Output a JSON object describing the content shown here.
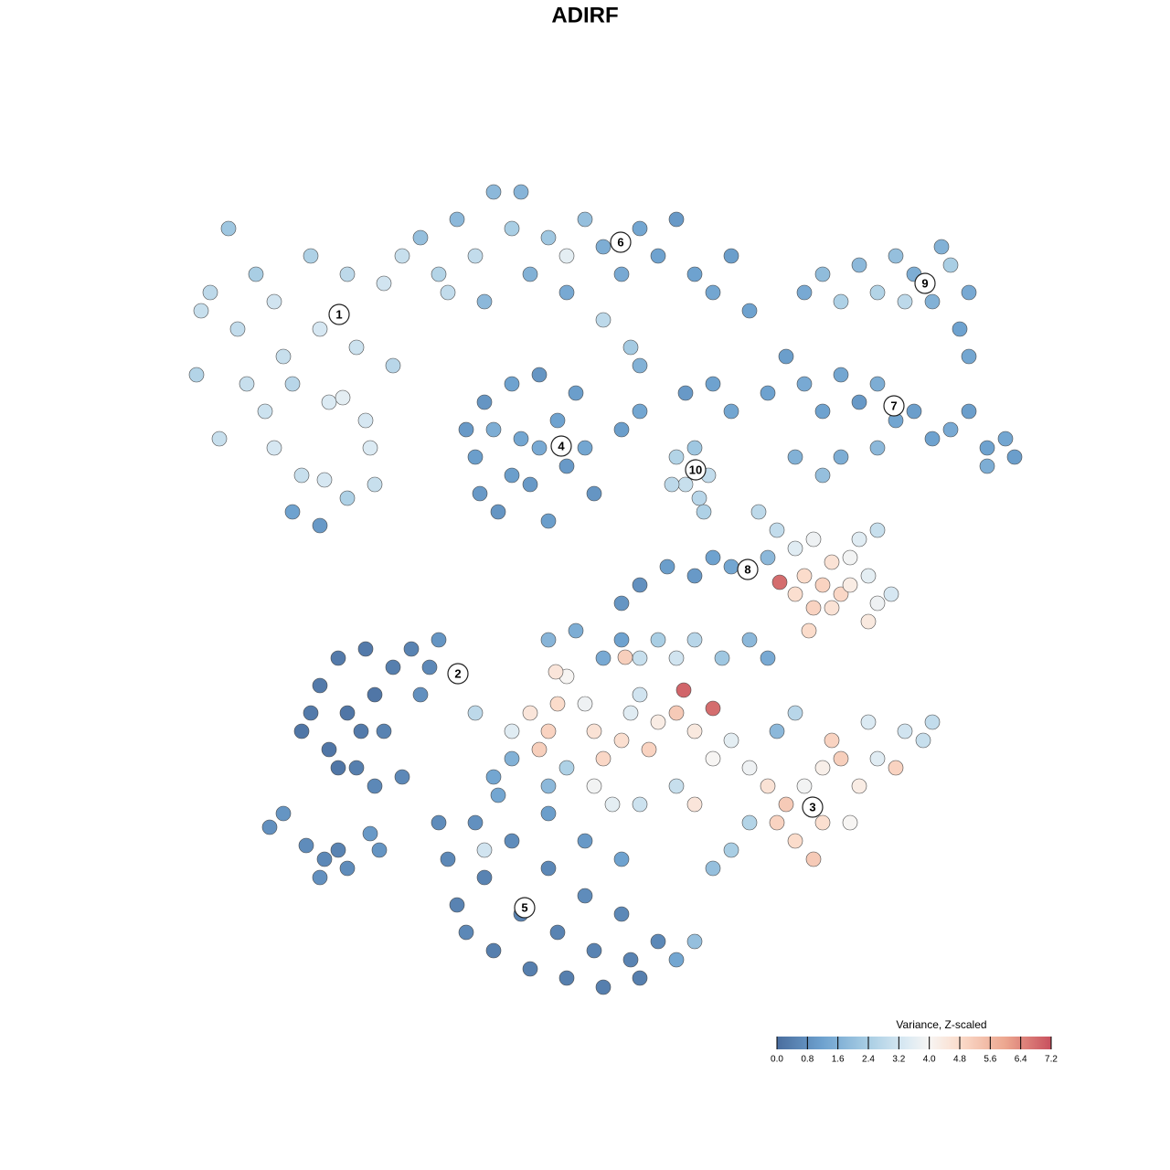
{
  "chart_data": {
    "type": "scatter",
    "title": "ADIRF",
    "xlim": [
      0,
      1280
    ],
    "ylim": [
      1280,
      0
    ],
    "x": [
      220,
      230,
      215,
      240,
      260,
      280,
      300,
      310,
      290,
      300,
      320,
      340,
      350,
      360,
      330,
      355,
      380,
      390,
      375,
      400,
      410,
      420,
      430,
      440,
      320,
      350,
      380,
      405,
      250,
      270,
      460,
      480,
      500,
      520,
      540,
      560,
      580,
      600,
      620,
      640,
      660,
      680,
      700,
      720,
      740,
      760,
      780,
      800,
      820,
      660,
      690,
      700,
      620,
      570,
      490,
      530,
      510,
      520,
      530,
      545,
      560,
      570,
      580,
      590,
      600,
      610,
      620,
      630,
      640,
      650,
      560,
      590,
      525,
      540,
      880,
      900,
      920,
      940,
      960,
      980,
      1000,
      1020,
      1040,
      1060,
      1050,
      1060,
      1030,
      990,
      840,
      860,
      880,
      900,
      920,
      940,
      960,
      980,
      1000,
      1020,
      1040,
      1060,
      1080,
      1100,
      1110,
      1080,
      870,
      900,
      920,
      960,
      780,
      800,
      750,
      700,
      680,
      740,
      750,
      765,
      775,
      760,
      735,
      770,
      830,
      850,
      840,
      870,
      890,
      910,
      920,
      900,
      880,
      870,
      890,
      910,
      930,
      950,
      960,
      975,
      950,
      930,
      940,
      960,
      885,
      853,
      800,
      780,
      760,
      730,
      700,
      680,
      330,
      350,
      360,
      370,
      380,
      390,
      400,
      410,
      420,
      430,
      440,
      450,
      460,
      480,
      500,
      410,
      340,
      370,
      395,
      470,
      295,
      310,
      335,
      355,
      370,
      380,
      350,
      405,
      415,
      520,
      560,
      580,
      600,
      610,
      590,
      620,
      640,
      650,
      660,
      680,
      690,
      700,
      710,
      720,
      740,
      748,
      780,
      760,
      780,
      800,
      820,
      840,
      860,
      850,
      870,
      880,
      900,
      910,
      920,
      940,
      960,
      980,
      990,
      1010,
      1020,
      950,
      900,
      890,
      930,
      820,
      800,
      780,
      760,
      740,
      700,
      670,
      650,
      620,
      600,
      740,
      720,
      700,
      760,
      790,
      820,
      840,
      600,
      630,
      660,
      680,
      684,
      608,
      560,
      540,
      850,
      870,
      480,
      490,
      500,
      510,
      520,
      530,
      540,
      560,
      570,
      580,
      600,
      610,
      620,
      640,
      650,
      660,
      680,
      690,
      700,
      720,
      740,
      760,
      640,
      680,
      530,
      545,
      600
    ],
    "y": [
      340,
      320,
      410,
      480,
      360,
      300,
      330,
      390,
      450,
      490,
      420,
      280,
      360,
      440,
      520,
      525,
      300,
      380,
      435,
      460,
      530,
      310,
      400,
      280,
      560,
      575,
      545,
      490,
      250,
      420,
      260,
      300,
      240,
      280,
      210,
      250,
      300,
      260,
      280,
      240,
      270,
      300,
      250,
      280,
      240,
      300,
      320,
      280,
      340,
      350,
      380,
      400,
      320,
      210,
      320,
      330,
      470,
      500,
      440,
      560,
      420,
      480,
      530,
      410,
      570,
      460,
      510,
      430,
      490,
      540,
      520,
      490,
      540,
      470,
      320,
      300,
      330,
      290,
      320,
      280,
      300,
      330,
      290,
      320,
      360,
      390,
      270,
      330,
      430,
      390,
      420,
      450,
      410,
      440,
      420,
      460,
      450,
      480,
      470,
      450,
      490,
      480,
      500,
      510,
      500,
      520,
      500,
      490,
      420,
      450,
      430,
      450,
      470,
      500,
      530,
      545,
      520,
      490,
      530,
      560,
      560,
      580,
      610,
      600,
      590,
      615,
      650,
      640,
      630,
      650,
      665,
      665,
      640,
      630,
      660,
      650,
      680,
      610,
      590,
      580,
      690,
      637,
      620,
      610,
      630,
      620,
      640,
      660,
      800,
      750,
      820,
      720,
      780,
      840,
      710,
      760,
      800,
      730,
      850,
      710,
      760,
      700,
      740,
      860,
      780,
      840,
      800,
      730,
      905,
      890,
      925,
      940,
      930,
      950,
      960,
      912,
      930,
      780,
      800,
      780,
      800,
      770,
      820,
      740,
      770,
      800,
      830,
      810,
      780,
      760,
      820,
      790,
      780,
      755,
      775,
      800,
      830,
      810,
      840,
      860,
      880,
      900,
      920,
      860,
      840,
      810,
      830,
      860,
      830,
      840,
      800,
      810,
      790,
      790,
      900,
      940,
      900,
      900,
      930,
      950,
      880,
      860,
      880,
      880,
      860,
      840,
      860,
      720,
      700,
      720,
      700,
      720,
      700,
      720,
      700,
      690,
      720,
      700,
      719,
      735,
      830,
      850,
      800,
      780,
      900,
      940,
      990,
      1020,
      900,
      960,
      1040,
      920,
      1000,
      1060,
      950,
      1020,
      1070,
      980,
      1040,
      1080,
      1000,
      1050,
      1070,
      1030,
      1050,
      1030,
      920,
      940,
      930,
      870,
      890
    ],
    "values": [
      3.0,
      2.8,
      2.6,
      3.0,
      2.9,
      2.4,
      3.2,
      3.0,
      3.1,
      3.3,
      2.7,
      2.5,
      3.3,
      3.4,
      3.0,
      3.3,
      2.8,
      3.1,
      3.6,
      3.3,
      3.0,
      3.2,
      2.7,
      3.0,
      1.2,
      1.0,
      2.5,
      3.4,
      2.2,
      3.0,
      2.0,
      2.6,
      1.8,
      2.9,
      1.8,
      2.4,
      1.6,
      2.2,
      3.6,
      2.0,
      1.5,
      1.4,
      1.3,
      1.2,
      1.0,
      1.2,
      1.3,
      1.1,
      1.2,
      2.8,
      2.3,
      1.6,
      1.4,
      1.7,
      2.9,
      1.8,
      1.0,
      1.1,
      0.9,
      0.9,
      1.2,
      1.3,
      1.0,
      0.9,
      1.1,
      1.2,
      1.0,
      1.1,
      1.3,
      0.9,
      1.1,
      1.4,
      1.0,
      1.5,
      1.4,
      1.9,
      2.5,
      1.8,
      2.6,
      2.0,
      1.5,
      1.6,
      2.4,
      1.4,
      1.2,
      1.3,
      1.6,
      2.8,
      1.2,
      1.1,
      1.4,
      1.2,
      1.3,
      1.0,
      1.5,
      1.3,
      1.1,
      1.2,
      1.4,
      1.1,
      1.2,
      1.3,
      1.1,
      1.5,
      1.6,
      2.0,
      1.5,
      1.8,
      1.2,
      1.3,
      1.0,
      1.3,
      1.1,
      2.6,
      3.0,
      2.7,
      2.9,
      2.2,
      2.8,
      2.5,
      2.8,
      2.9,
      1.8,
      3.5,
      3.8,
      4.6,
      4.9,
      5.0,
      4.8,
      4.7,
      5.0,
      4.6,
      4.3,
      3.6,
      3.8,
      3.3,
      4.4,
      3.9,
      3.5,
      3.0,
      4.8,
      6.8,
      1.3,
      1.2,
      1.0,
      1.1,
      0.8,
      0.9,
      0.2,
      0.3,
      0.2,
      0.3,
      0.2,
      0.4,
      0.3,
      0.2,
      0.5,
      0.4,
      0.6,
      0.5,
      0.8,
      0.9,
      0.7,
      0.6,
      0.3,
      0.2,
      0.3,
      0.6,
      0.8,
      0.9,
      0.7,
      0.6,
      0.5,
      0.7,
      0.8,
      1.0,
      0.9,
      2.8,
      3.5,
      4.5,
      5.0,
      4.8,
      5.1,
      4.0,
      3.8,
      4.6,
      4.9,
      4.7,
      3.5,
      3.2,
      5.0,
      4.3,
      5.2,
      6.9,
      6.8,
      4.4,
      4.0,
      3.6,
      3.8,
      4.6,
      5.2,
      5.0,
      4.8,
      3.9,
      4.2,
      5.0,
      5.1,
      4.3,
      3.5,
      5.0,
      3.2,
      3.0,
      2.9,
      3.4,
      4.7,
      5.2,
      4.0,
      2.6,
      2.4,
      2.0,
      4.5,
      3.0,
      3.1,
      3.6,
      3.9,
      2.5,
      1.8,
      3.2,
      2.4,
      3.0,
      2.7,
      2.2,
      1.8,
      1.4,
      1.7,
      1.5,
      1.4,
      1.2,
      5.1,
      4.5,
      1.6,
      1.3,
      1.8,
      2.7,
      0.7,
      0.6,
      0.5,
      0.6,
      0.8,
      0.5,
      0.4,
      0.7,
      0.5,
      0.4,
      0.6,
      0.5,
      0.4,
      0.7,
      0.5,
      0.4,
      0.6,
      0.5,
      0.4,
      0.6,
      1.3,
      2.0,
      1.0,
      1.2,
      3.2,
      1.3,
      1.1
    ],
    "annotations": [
      {
        "text": "1",
        "x": 371,
        "y": 344
      },
      {
        "text": "2",
        "x": 501,
        "y": 737
      },
      {
        "text": "3",
        "x": 889,
        "y": 883
      },
      {
        "text": "4",
        "x": 614,
        "y": 488
      },
      {
        "text": "5",
        "x": 574,
        "y": 993
      },
      {
        "text": "6",
        "x": 679,
        "y": 265
      },
      {
        "text": "7",
        "x": 978,
        "y": 444
      },
      {
        "text": "8",
        "x": 818,
        "y": 623
      },
      {
        "text": "9",
        "x": 1012,
        "y": 310
      },
      {
        "text": "10",
        "x": 761,
        "y": 514
      }
    ],
    "colorbar": {
      "title": "Variance, Z-scaled",
      "lim": [
        0,
        7.2
      ],
      "ticks": [
        {
          "value": 0,
          "label": "0.0"
        },
        0.8,
        1.6,
        2.4,
        3.2,
        {
          "value": 4,
          "label": "4.0"
        },
        4.8,
        5.6,
        6.4,
        7.2
      ],
      "colorscale": [
        [
          0,
          "#4a6d9e"
        ],
        [
          1.2,
          "#6ea2cf"
        ],
        [
          2.4,
          "#a9cee4"
        ],
        [
          3.4,
          "#dbeaf3"
        ],
        [
          4.0,
          "#f7f5f3"
        ],
        [
          4.8,
          "#fbdccb"
        ],
        [
          6.0,
          "#eca68f"
        ],
        [
          7.2,
          "#c8505e"
        ]
      ]
    }
  }
}
